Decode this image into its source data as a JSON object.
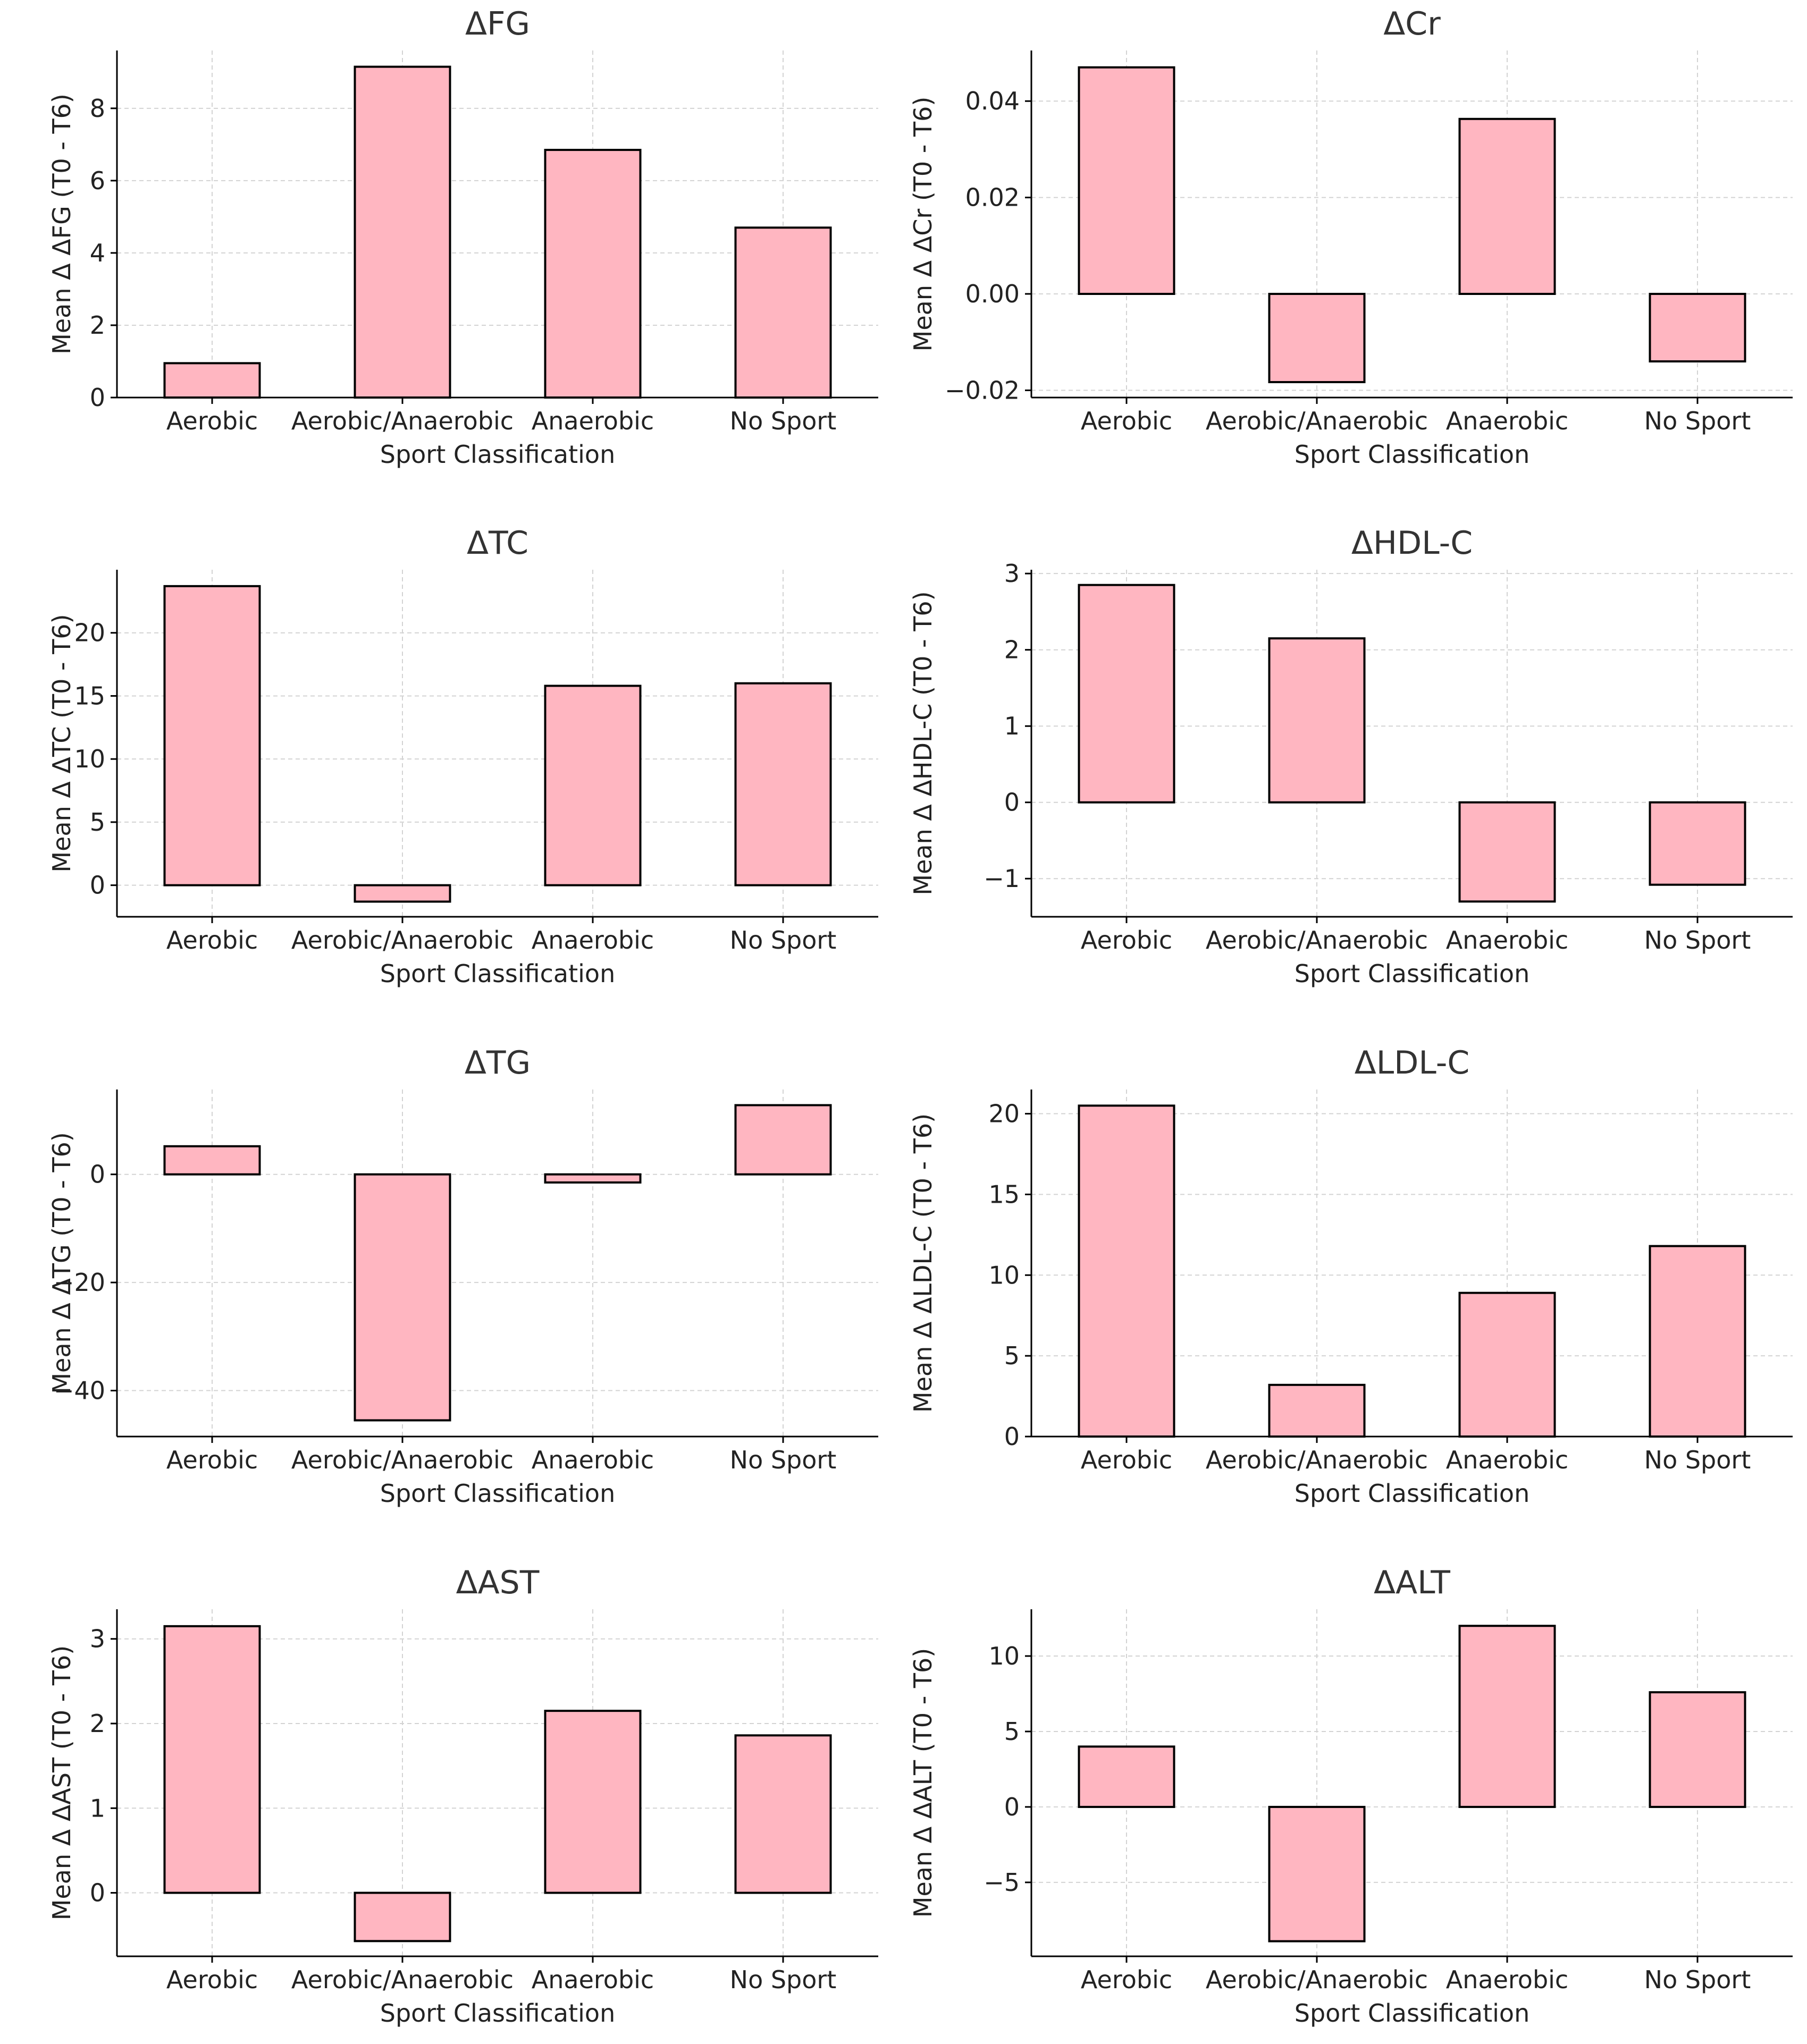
{
  "figure": {
    "style": {
      "bar_fill": "#FFB6C1",
      "bar_stroke": "#000000",
      "grid_color": "#d3d3d3",
      "axis_color": "#000000",
      "text_color": "#222222",
      "title_color": "#333333"
    }
  },
  "chart_data": [
    {
      "type": "bar",
      "title": "ΔFG",
      "xlabel": "Sport Classification",
      "ylabel": "Mean Δ  ΔFG (T0 - T6)",
      "categories": [
        "Aerobic",
        "Aerobic/Anaerobic",
        "Anaerobic",
        "No Sport"
      ],
      "values": [
        0.95,
        9.15,
        6.85,
        4.7
      ],
      "ylim": [
        0,
        9.6
      ],
      "yticks": [
        0,
        2,
        4,
        6,
        8
      ],
      "ytick_labels": [
        "0",
        "2",
        "4",
        "6",
        "8"
      ],
      "grid": true
    },
    {
      "type": "bar",
      "title": "ΔCr",
      "xlabel": "Sport Classification",
      "ylabel": "Mean Δ  ΔCr (T0 - T6)",
      "categories": [
        "Aerobic",
        "Aerobic/Anaerobic",
        "Anaerobic",
        "No Sport"
      ],
      "values": [
        0.047,
        -0.0183,
        0.0363,
        -0.014
      ],
      "ylim": [
        -0.0215,
        0.0505
      ],
      "yticks": [
        -0.02,
        0,
        0.02,
        0.04
      ],
      "ytick_labels": [
        "−0.02",
        "0.00",
        "0.02",
        "0.04"
      ],
      "grid": true
    },
    {
      "type": "bar",
      "title": "ΔTC",
      "xlabel": "Sport Classification",
      "ylabel": "Mean Δ  ΔTC (T0 - T6)",
      "categories": [
        "Aerobic",
        "Aerobic/Anaerobic",
        "Anaerobic",
        "No Sport"
      ],
      "values": [
        23.7,
        -1.3,
        15.8,
        16.0
      ],
      "ylim": [
        -2.5,
        25.0
      ],
      "yticks": [
        0,
        5,
        10,
        15,
        20
      ],
      "ytick_labels": [
        "0",
        "5",
        "10",
        "15",
        "20"
      ],
      "grid": true
    },
    {
      "type": "bar",
      "title": "ΔHDL-C",
      "xlabel": "Sport Classification",
      "ylabel": "Mean Δ ΔHDL-C (T0 - T6)",
      "categories": [
        "Aerobic",
        "Aerobic/Anaerobic",
        "Anaerobic",
        "No Sport"
      ],
      "values": [
        2.85,
        2.15,
        -1.3,
        -1.08
      ],
      "ylim": [
        -1.5,
        3.05
      ],
      "yticks": [
        -1,
        0,
        1,
        2,
        3
      ],
      "ytick_labels": [
        "−1",
        "0",
        "1",
        "2",
        "3"
      ],
      "grid": true
    },
    {
      "type": "bar",
      "title": "ΔTG",
      "xlabel": "Sport Classification",
      "ylabel": "Mean Δ ΔTG (T0 - T6)",
      "categories": [
        "Aerobic",
        "Aerobic/Anaerobic",
        "Anaerobic",
        "No Sport"
      ],
      "values": [
        5.2,
        -45.5,
        -1.5,
        12.8
      ],
      "ylim": [
        -48.5,
        15.7
      ],
      "yticks": [
        -40,
        -20,
        0
      ],
      "ytick_labels": [
        "−40",
        "−20",
        "0"
      ],
      "grid": true
    },
    {
      "type": "bar",
      "title": "ΔLDL-C",
      "xlabel": "Sport Classification",
      "ylabel": "Mean Δ ΔLDL-C (T0 - T6)",
      "categories": [
        "Aerobic",
        "Aerobic/Anaerobic",
        "Anaerobic",
        "No Sport"
      ],
      "values": [
        20.5,
        3.2,
        8.9,
        11.8
      ],
      "ylim": [
        0,
        21.5
      ],
      "yticks": [
        0,
        5,
        10,
        15,
        20
      ],
      "ytick_labels": [
        "0",
        "5",
        "10",
        "15",
        "20"
      ],
      "grid": true
    },
    {
      "type": "bar",
      "title": "ΔAST",
      "xlabel": "Sport Classification",
      "ylabel": "Mean Δ ΔAST (T0 - T6)",
      "categories": [
        "Aerobic",
        "Aerobic/Anaerobic",
        "Anaerobic",
        "No Sport"
      ],
      "values": [
        3.15,
        -0.57,
        2.15,
        1.86
      ],
      "ylim": [
        -0.75,
        3.35
      ],
      "yticks": [
        0,
        1,
        2,
        3
      ],
      "ytick_labels": [
        "0",
        "1",
        "2",
        "3"
      ],
      "grid": true
    },
    {
      "type": "bar",
      "title": "ΔALT",
      "xlabel": "Sport Classification",
      "ylabel": "Mean Δ ΔALT (T0 - T6)",
      "categories": [
        "Aerobic",
        "Aerobic/Anaerobic",
        "Anaerobic",
        "No Sport"
      ],
      "values": [
        4.0,
        -8.9,
        12.0,
        7.6
      ],
      "ylim": [
        -9.9,
        13.1
      ],
      "yticks": [
        -5,
        0,
        5,
        10
      ],
      "ytick_labels": [
        "−5",
        "0",
        "5",
        "10"
      ],
      "grid": true
    }
  ]
}
